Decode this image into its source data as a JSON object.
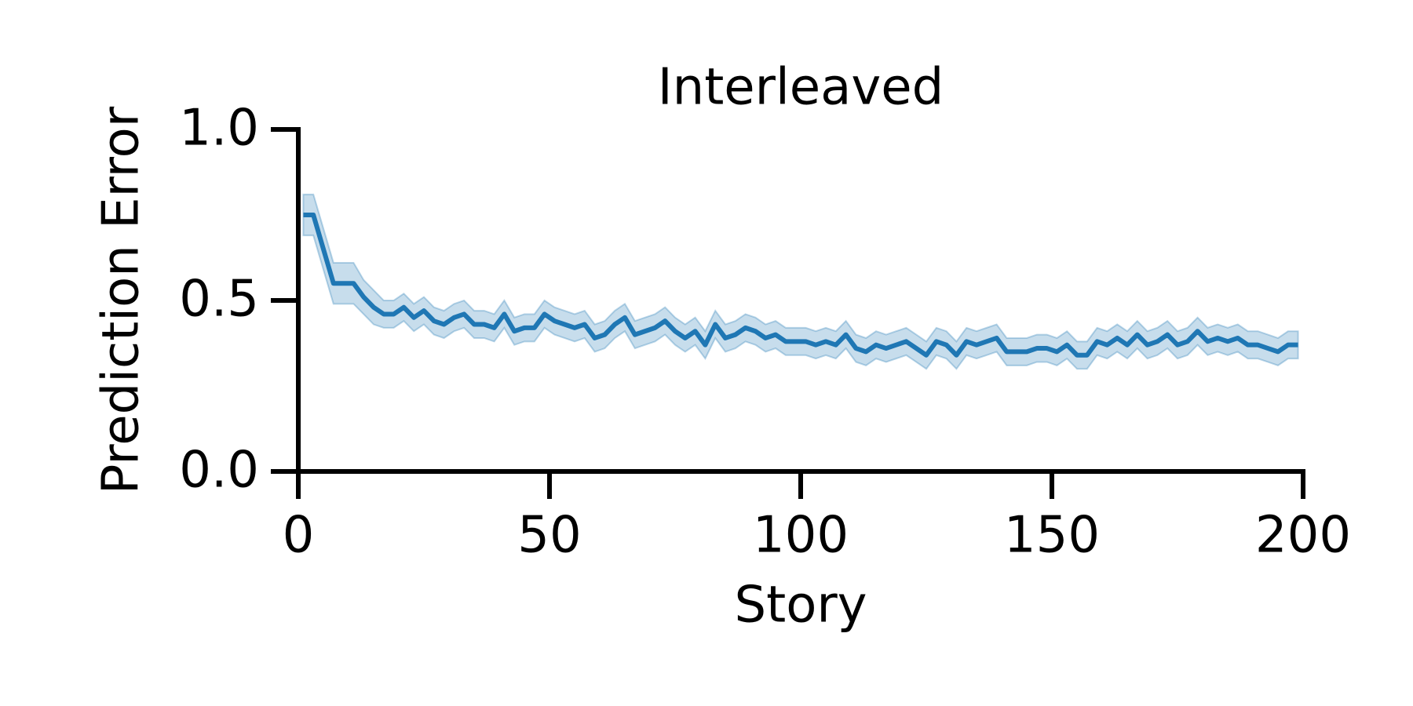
{
  "chart_data": {
    "type": "line",
    "title": "Interleaved",
    "x_label": "Story",
    "y_label": "Prediction Error",
    "x": [
      1,
      3,
      5,
      7,
      9,
      11,
      13,
      15,
      17,
      19,
      21,
      23,
      25,
      27,
      29,
      31,
      33,
      35,
      37,
      39,
      41,
      43,
      45,
      47,
      49,
      51,
      53,
      55,
      57,
      59,
      61,
      63,
      65,
      67,
      69,
      71,
      73,
      75,
      77,
      79,
      81,
      83,
      85,
      87,
      89,
      91,
      93,
      95,
      97,
      99,
      101,
      103,
      105,
      107,
      109,
      111,
      113,
      115,
      117,
      119,
      121,
      123,
      125,
      127,
      129,
      131,
      133,
      135,
      137,
      139,
      141,
      143,
      145,
      147,
      149,
      151,
      153,
      155,
      157,
      159,
      161,
      163,
      165,
      167,
      169,
      171,
      173,
      175,
      177,
      179,
      181,
      183,
      185,
      187,
      189,
      191,
      193,
      195,
      197,
      199
    ],
    "series": [
      {
        "color": "#1f77b4",
        "values": [
          0.75,
          0.75,
          0.65,
          0.55,
          0.55,
          0.55,
          0.51,
          0.48,
          0.46,
          0.46,
          0.48,
          0.45,
          0.47,
          0.44,
          0.43,
          0.45,
          0.46,
          0.43,
          0.43,
          0.42,
          0.46,
          0.41,
          0.42,
          0.42,
          0.46,
          0.44,
          0.43,
          0.42,
          0.43,
          0.39,
          0.4,
          0.43,
          0.45,
          0.4,
          0.41,
          0.42,
          0.44,
          0.41,
          0.39,
          0.41,
          0.37,
          0.43,
          0.39,
          0.4,
          0.42,
          0.41,
          0.39,
          0.4,
          0.38,
          0.38,
          0.38,
          0.37,
          0.38,
          0.37,
          0.4,
          0.36,
          0.35,
          0.37,
          0.36,
          0.37,
          0.38,
          0.36,
          0.34,
          0.38,
          0.37,
          0.34,
          0.38,
          0.37,
          0.38,
          0.39,
          0.35,
          0.35,
          0.35,
          0.36,
          0.36,
          0.35,
          0.37,
          0.34,
          0.34,
          0.38,
          0.37,
          0.39,
          0.37,
          0.4,
          0.37,
          0.38,
          0.4,
          0.37,
          0.38,
          0.41,
          0.38,
          0.39,
          0.38,
          0.39,
          0.37,
          0.37,
          0.36,
          0.35,
          0.37,
          0.37
        ],
        "error": [
          0.06,
          0.06,
          0.06,
          0.06,
          0.06,
          0.06,
          0.05,
          0.05,
          0.04,
          0.04,
          0.04,
          0.04,
          0.04,
          0.04,
          0.04,
          0.04,
          0.04,
          0.04,
          0.04,
          0.04,
          0.04,
          0.04,
          0.04,
          0.04,
          0.04,
          0.04,
          0.04,
          0.04,
          0.04,
          0.04,
          0.04,
          0.04,
          0.04,
          0.04,
          0.04,
          0.04,
          0.04,
          0.04,
          0.04,
          0.04,
          0.04,
          0.04,
          0.04,
          0.04,
          0.04,
          0.04,
          0.04,
          0.04,
          0.04,
          0.04,
          0.04,
          0.04,
          0.04,
          0.04,
          0.04,
          0.04,
          0.04,
          0.04,
          0.04,
          0.04,
          0.04,
          0.04,
          0.04,
          0.04,
          0.04,
          0.04,
          0.04,
          0.04,
          0.04,
          0.04,
          0.04,
          0.04,
          0.04,
          0.04,
          0.04,
          0.04,
          0.04,
          0.04,
          0.04,
          0.04,
          0.04,
          0.04,
          0.04,
          0.04,
          0.04,
          0.04,
          0.04,
          0.04,
          0.04,
          0.04,
          0.04,
          0.04,
          0.04,
          0.04,
          0.04,
          0.04,
          0.04,
          0.04,
          0.04,
          0.04
        ]
      }
    ],
    "xlim": [
      0,
      200
    ],
    "xticks": [
      0,
      50,
      100,
      150,
      200
    ],
    "ylim": [
      0,
      1
    ],
    "yticks": [
      {
        "value": 0,
        "label": "0.0"
      },
      {
        "value": 0.5,
        "label": "0.5"
      },
      {
        "value": 1,
        "label": "1.0"
      }
    ]
  }
}
